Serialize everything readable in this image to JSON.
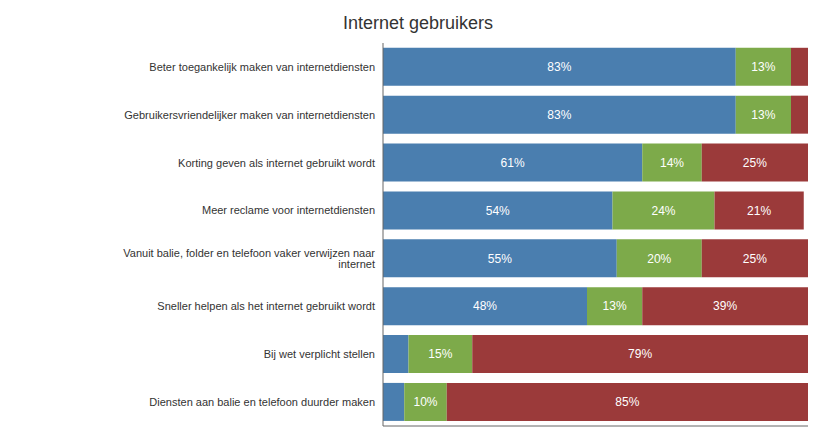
{
  "chart_data": {
    "type": "bar",
    "title": "Internet gebruikers",
    "orientation": "horizontal",
    "stacked": true,
    "categories": [
      "Beter toegankelijk maken van internetdiensten",
      "Gebruikersvriendelijker maken van internetdiensten",
      "Korting geven als internet gebruikt wordt",
      "Meer reclame voor internetdiensten",
      "Vanuit balie, folder en telefoon vaker verwijzen naar internet",
      "Sneller helpen als het internet gebruikt wordt",
      "Bij wet verplicht stellen",
      "Diensten aan balie en telefoon duurder maken"
    ],
    "series": [
      {
        "color": "#4A7EAF",
        "values": [
          83,
          83,
          61,
          54,
          55,
          48,
          6,
          5
        ],
        "value_labels": [
          "83%",
          "83%",
          "61%",
          "54%",
          "55%",
          "48%",
          null,
          null
        ]
      },
      {
        "color": "#7DAA4A",
        "values": [
          13,
          13,
          14,
          24,
          20,
          13,
          15,
          10
        ],
        "value_labels": [
          "13%",
          "13%",
          "14%",
          "24%",
          "20%",
          "13%",
          "15%",
          "10%"
        ]
      },
      {
        "color": "#9B3A3A",
        "values": [
          4,
          4,
          25,
          21,
          25,
          39,
          79,
          85
        ],
        "value_labels": [
          null,
          null,
          "25%",
          "21%",
          "25%",
          "39%",
          "79%",
          "85%"
        ]
      }
    ],
    "xlim": [
      0,
      100
    ],
    "xticks": [],
    "data_labels": true,
    "grid": false,
    "tick_labels": "y"
  }
}
